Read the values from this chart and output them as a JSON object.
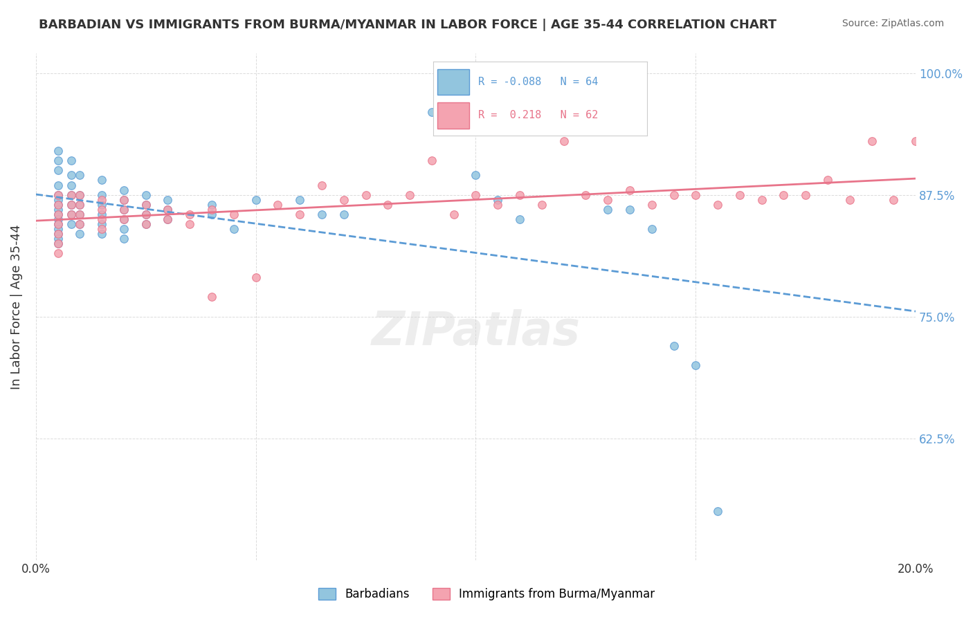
{
  "title": "BARBADIAN VS IMMIGRANTS FROM BURMA/MYANMAR IN LABOR FORCE | AGE 35-44 CORRELATION CHART",
  "source": "Source: ZipAtlas.com",
  "xlabel_bottom": "",
  "ylabel": "In Labor Force | Age 35-44",
  "x_min": 0.0,
  "x_max": 0.2,
  "y_min": 0.5,
  "y_max": 1.02,
  "x_ticks": [
    0.0,
    0.05,
    0.1,
    0.15,
    0.2
  ],
  "x_tick_labels": [
    "0.0%",
    "",
    "",
    "",
    "20.0%"
  ],
  "y_ticks": [
    0.625,
    0.75,
    0.875,
    1.0
  ],
  "y_tick_labels": [
    "62.5%",
    "75.0%",
    "87.5%",
    "100.0%"
  ],
  "legend_labels": [
    "Barbadians",
    "Immigrants from Burma/Myanmar"
  ],
  "legend_R": [
    -0.088,
    0.218
  ],
  "legend_N": [
    64,
    62
  ],
  "color_blue": "#92c5de",
  "color_pink": "#f4a3b0",
  "line_color_blue": "#5b9bd5",
  "line_color_pink": "#e8748a",
  "watermark": "ZIPatlas",
  "blue_scatter_x": [
    0.005,
    0.005,
    0.005,
    0.005,
    0.005,
    0.005,
    0.005,
    0.005,
    0.005,
    0.005,
    0.005,
    0.005,
    0.005,
    0.005,
    0.005,
    0.008,
    0.008,
    0.008,
    0.008,
    0.008,
    0.008,
    0.008,
    0.01,
    0.01,
    0.01,
    0.01,
    0.01,
    0.01,
    0.015,
    0.015,
    0.015,
    0.015,
    0.015,
    0.015,
    0.02,
    0.02,
    0.02,
    0.02,
    0.02,
    0.02,
    0.025,
    0.025,
    0.025,
    0.025,
    0.03,
    0.03,
    0.03,
    0.04,
    0.04,
    0.045,
    0.05,
    0.06,
    0.065,
    0.07,
    0.09,
    0.1,
    0.105,
    0.11,
    0.13,
    0.135,
    0.14,
    0.145,
    0.15,
    0.155
  ],
  "blue_scatter_y": [
    0.92,
    0.91,
    0.9,
    0.885,
    0.875,
    0.87,
    0.865,
    0.86,
    0.855,
    0.85,
    0.845,
    0.84,
    0.835,
    0.83,
    0.825,
    0.91,
    0.895,
    0.885,
    0.875,
    0.865,
    0.855,
    0.845,
    0.895,
    0.875,
    0.865,
    0.855,
    0.845,
    0.835,
    0.89,
    0.875,
    0.865,
    0.855,
    0.845,
    0.835,
    0.88,
    0.87,
    0.86,
    0.85,
    0.84,
    0.83,
    0.875,
    0.865,
    0.855,
    0.845,
    0.87,
    0.86,
    0.85,
    0.865,
    0.855,
    0.84,
    0.87,
    0.87,
    0.855,
    0.855,
    0.96,
    0.895,
    0.87,
    0.85,
    0.86,
    0.86,
    0.84,
    0.72,
    0.7,
    0.55
  ],
  "pink_scatter_x": [
    0.005,
    0.005,
    0.005,
    0.005,
    0.005,
    0.005,
    0.005,
    0.008,
    0.008,
    0.008,
    0.01,
    0.01,
    0.01,
    0.01,
    0.015,
    0.015,
    0.015,
    0.015,
    0.02,
    0.02,
    0.02,
    0.025,
    0.025,
    0.025,
    0.03,
    0.03,
    0.035,
    0.035,
    0.04,
    0.04,
    0.045,
    0.05,
    0.055,
    0.06,
    0.065,
    0.07,
    0.075,
    0.08,
    0.085,
    0.09,
    0.095,
    0.1,
    0.105,
    0.11,
    0.115,
    0.12,
    0.125,
    0.13,
    0.135,
    0.14,
    0.145,
    0.15,
    0.155,
    0.16,
    0.165,
    0.17,
    0.175,
    0.18,
    0.185,
    0.19,
    0.195,
    0.2
  ],
  "pink_scatter_y": [
    0.875,
    0.865,
    0.855,
    0.845,
    0.835,
    0.825,
    0.815,
    0.875,
    0.865,
    0.855,
    0.875,
    0.865,
    0.855,
    0.845,
    0.87,
    0.86,
    0.85,
    0.84,
    0.87,
    0.86,
    0.85,
    0.865,
    0.855,
    0.845,
    0.86,
    0.85,
    0.855,
    0.845,
    0.86,
    0.77,
    0.855,
    0.79,
    0.865,
    0.855,
    0.885,
    0.87,
    0.875,
    0.865,
    0.875,
    0.91,
    0.855,
    0.875,
    0.865,
    0.875,
    0.865,
    0.93,
    0.875,
    0.87,
    0.88,
    0.865,
    0.875,
    0.875,
    0.865,
    0.875,
    0.87,
    0.875,
    0.875,
    0.89,
    0.87,
    0.93,
    0.87,
    0.93
  ]
}
